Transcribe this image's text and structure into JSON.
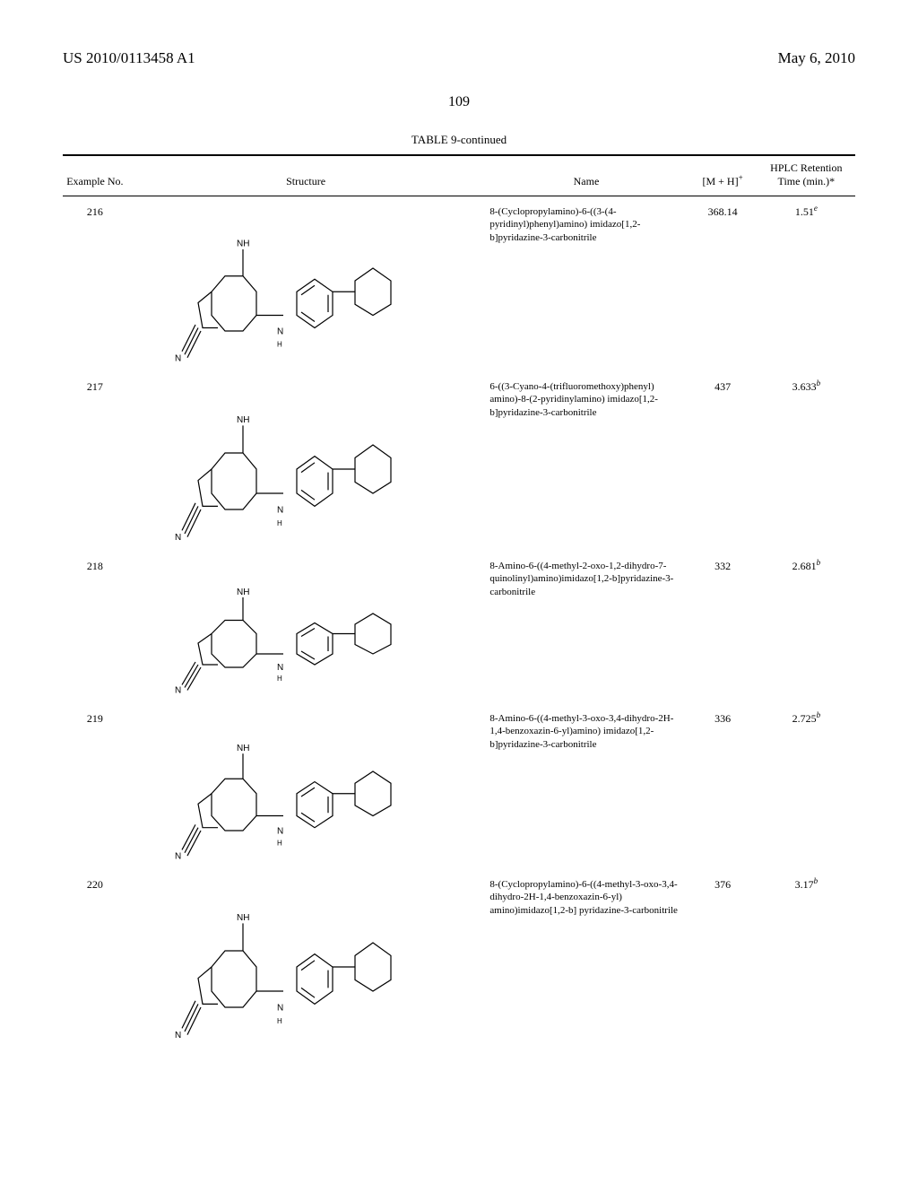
{
  "header": {
    "left": "US 2010/0113458 A1",
    "right": "May 6, 2010"
  },
  "page_number": "109",
  "table": {
    "title": "TABLE 9-continued",
    "columns": {
      "example_no": "Example No.",
      "structure": "Structure",
      "name": "Name",
      "mh": "[M + H]",
      "mh_sup": "+",
      "rt": "HPLC Retention Time (min.)*"
    },
    "rows": [
      {
        "example_no": "216",
        "struct_height": 175,
        "name": "8-(Cyclopropylamino)-6-((3-(4-pyridinyl)phenyl)amino) imidazo[1,2-b]pyridazine-3-carbonitrile",
        "mh": "368.14",
        "rt": "1.51",
        "rt_sup": "e"
      },
      {
        "example_no": "217",
        "struct_height": 180,
        "name": "6-((3-Cyano-4-(trifluoromethoxy)phenyl) amino)-8-(2-pyridinylamino) imidazo[1,2-b]pyridazine-3-carbonitrile",
        "mh": "437",
        "rt": "3.633",
        "rt_sup": "b"
      },
      {
        "example_no": "218",
        "struct_height": 150,
        "name": "8-Amino-6-((4-methyl-2-oxo-1,2-dihydro-7-quinolinyl)amino)imidazo[1,2-b]pyridazine-3-carbonitrile",
        "mh": "332",
        "rt": "2.681",
        "rt_sup": "b"
      },
      {
        "example_no": "219",
        "struct_height": 165,
        "name": "8-Amino-6-((4-methyl-3-oxo-3,4-dihydro-2H-1,4-benzoxazin-6-yl)amino) imidazo[1,2-b]pyridazine-3-carbonitrile",
        "mh": "336",
        "rt": "2.725",
        "rt_sup": "b"
      },
      {
        "example_no": "220",
        "struct_height": 180,
        "name": "8-(Cyclopropylamino)-6-((4-methyl-3-oxo-3,4-dihydro-2H-1,4-benzoxazin-6-yl) amino)imidazo[1,2-b] pyridazine-3-carbonitrile",
        "mh": "376",
        "rt": "3.17",
        "rt_sup": "b"
      }
    ]
  }
}
